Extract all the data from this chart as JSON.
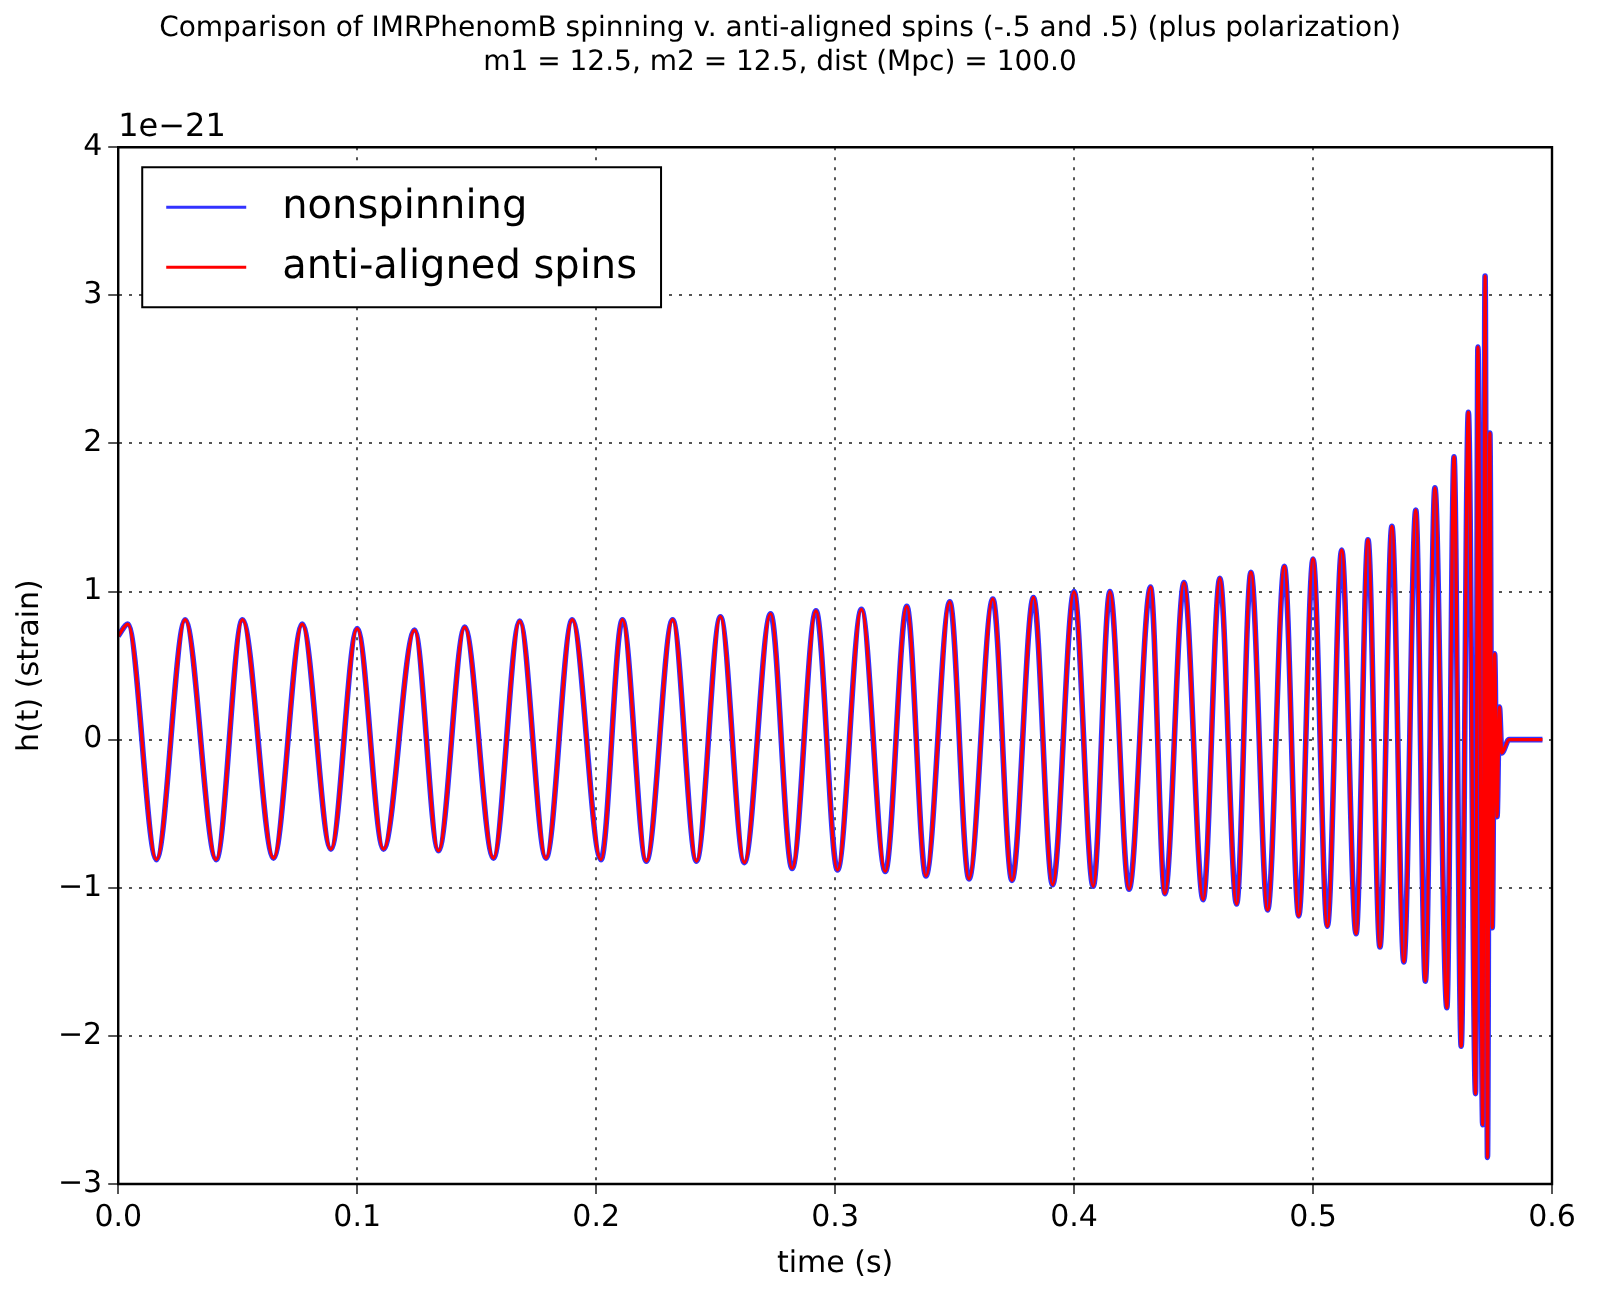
{
  "chart_data": {
    "type": "line",
    "title": [
      "Comparison of IMRPhenomB spinning v. anti-aligned spins (-.5 and .5) (plus polarization)",
      "m1 = 12.5, m2 = 12.5, dist (Mpc) = 100.0"
    ],
    "xlabel": "time (s)",
    "ylabel": "h(t) (strain)",
    "annotations": [
      "1e−21"
    ],
    "x": [
      0,
      0.004,
      0.016,
      0.028,
      0.041,
      0.052,
      0.065,
      0.077,
      0.089,
      0.1,
      0.111,
      0.124,
      0.134,
      0.145,
      0.157,
      0.168,
      0.179,
      0.19,
      0.202,
      0.211,
      0.221,
      0.232,
      0.242,
      0.252,
      0.262,
      0.273,
      0.282,
      0.292,
      0.301,
      0.311,
      0.321,
      0.33,
      0.338,
      0.348,
      0.356,
      0.366,
      0.374,
      0.383,
      0.391,
      0.4,
      0.408,
      0.415,
      0.423,
      0.432,
      0.438,
      0.446,
      0.454,
      0.461,
      0.468,
      0.474,
      0.481,
      0.488,
      0.494,
      0.5,
      0.506,
      0.512,
      0.518,
      0.523,
      0.528,
      0.533,
      0.538,
      0.543,
      0.547,
      0.551,
      0.556,
      0.559,
      0.562,
      0.565,
      0.568,
      0.569,
      0.571,
      0.572,
      0.573,
      0.574,
      0.575,
      0.576,
      0.577,
      0.578,
      0.579,
      0.582,
      0.596
    ],
    "series": [
      {
        "name": "nonspinning",
        "color": "#3333ff",
        "values": [
          0.7,
          0.78,
          -0.81,
          0.81,
          -0.81,
          0.81,
          -0.8,
          0.78,
          -0.74,
          0.75,
          -0.74,
          0.74,
          -0.75,
          0.76,
          -0.8,
          0.8,
          -0.8,
          0.81,
          -0.81,
          0.81,
          -0.82,
          0.81,
          -0.82,
          0.83,
          -0.83,
          0.85,
          -0.87,
          0.87,
          -0.88,
          0.88,
          -0.89,
          0.9,
          -0.92,
          0.93,
          -0.94,
          0.95,
          -0.95,
          0.96,
          -0.98,
          1.0,
          -0.99,
          1.0,
          -1.01,
          1.03,
          -1.04,
          1.06,
          -1.08,
          1.09,
          -1.11,
          1.13,
          -1.15,
          1.17,
          -1.19,
          1.22,
          -1.26,
          1.28,
          -1.31,
          1.35,
          -1.4,
          1.44,
          -1.5,
          1.55,
          -1.63,
          1.7,
          -1.81,
          1.91,
          -2.07,
          2.21,
          -2.39,
          2.65,
          -2.6,
          3.13,
          -2.82,
          2.07,
          -1.27,
          0.58,
          -0.52,
          0.22,
          -0.09,
          0,
          0
        ]
      },
      {
        "name": "anti-aligned spins",
        "color": "#ff0000",
        "values": [
          0.7,
          0.78,
          -0.81,
          0.81,
          -0.81,
          0.81,
          -0.8,
          0.78,
          -0.74,
          0.75,
          -0.74,
          0.74,
          -0.75,
          0.76,
          -0.8,
          0.8,
          -0.8,
          0.81,
          -0.81,
          0.81,
          -0.82,
          0.81,
          -0.82,
          0.83,
          -0.83,
          0.85,
          -0.87,
          0.87,
          -0.88,
          0.88,
          -0.89,
          0.9,
          -0.92,
          0.93,
          -0.94,
          0.95,
          -0.95,
          0.96,
          -0.98,
          1.0,
          -0.99,
          1.0,
          -1.01,
          1.03,
          -1.04,
          1.06,
          -1.08,
          1.09,
          -1.11,
          1.13,
          -1.15,
          1.17,
          -1.19,
          1.22,
          -1.26,
          1.28,
          -1.31,
          1.35,
          -1.4,
          1.44,
          -1.5,
          1.55,
          -1.63,
          1.7,
          -1.81,
          1.91,
          -2.07,
          2.21,
          -2.39,
          2.65,
          -2.6,
          3.13,
          -2.82,
          2.07,
          -1.27,
          0.58,
          -0.52,
          0.22,
          -0.09,
          0,
          0
        ]
      }
    ],
    "xlim": [
      0,
      0.6
    ],
    "xticks": [
      {
        "value": 0,
        "label": "0.0"
      },
      {
        "value": 0.1,
        "label": "0.1"
      },
      {
        "value": 0.2,
        "label": "0.2"
      },
      {
        "value": 0.3,
        "label": "0.3"
      },
      {
        "value": 0.4,
        "label": "0.4"
      },
      {
        "value": 0.5,
        "label": "0.5"
      },
      {
        "value": 0.6,
        "label": "0.6"
      }
    ],
    "ylim": [
      -3,
      4
    ],
    "yticks": [
      {
        "value": -3,
        "label": "−3"
      },
      {
        "value": -2,
        "label": "−2"
      },
      {
        "value": -1,
        "label": "−1"
      },
      0,
      1,
      2,
      3,
      4
    ],
    "grid": true,
    "legend": "top left",
    "marker": "none",
    "line_style": "solid"
  }
}
